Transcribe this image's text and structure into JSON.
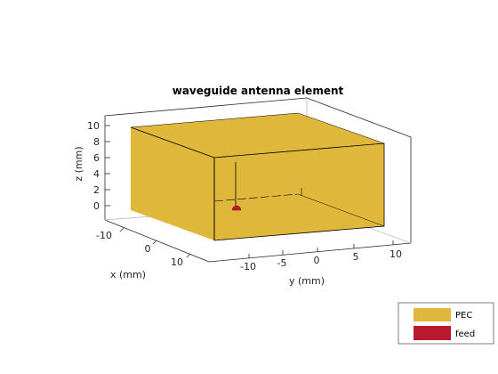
{
  "figure": {
    "title": "waveguide antenna element",
    "xlabel": "x (mm)",
    "ylabel": "y (mm)",
    "zlabel": "z (mm)",
    "x_ticks": [
      "-10",
      "0",
      "10"
    ],
    "y_ticks": [
      "-10",
      "-5",
      "0",
      "5",
      "10"
    ],
    "z_ticks": [
      "10",
      "8",
      "6",
      "4",
      "2",
      "0"
    ]
  },
  "legend": {
    "items": [
      {
        "label": "PEC",
        "color": "#dfb83b"
      },
      {
        "label": "feed",
        "color": "#b8192e"
      }
    ]
  },
  "colors": {
    "pec": "#dfb83b",
    "feed": "#b8192e",
    "axis": "#262626",
    "grid": "#dcdcdc"
  }
}
